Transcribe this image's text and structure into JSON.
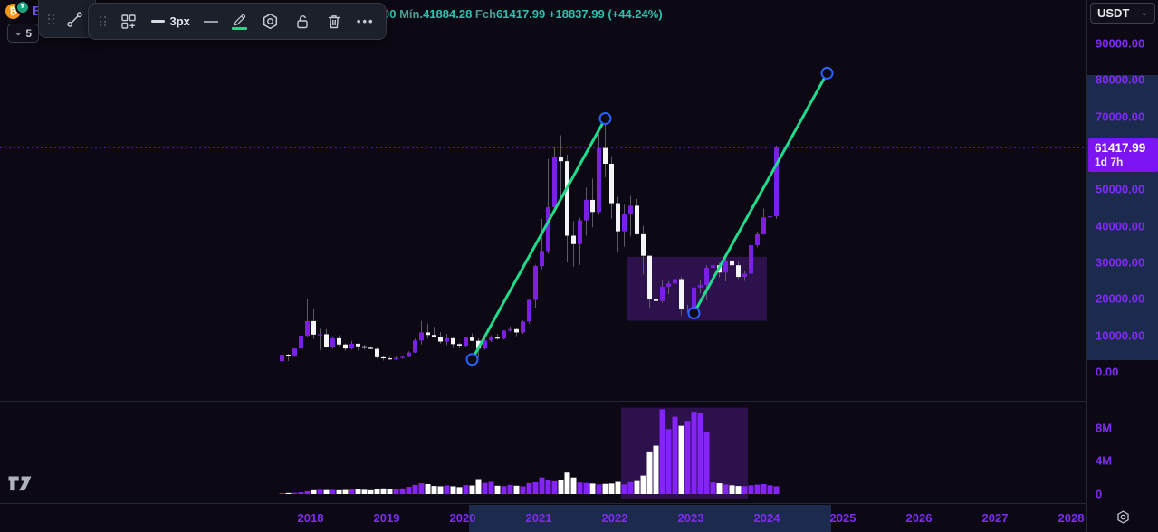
{
  "legend": {
    "symbol_fragment": "Bit",
    "collapse_count": "5",
    "ohlc_spans": [
      {
        "text": "00 ",
        "cls": "val"
      },
      {
        "text": "Mín.",
        "cls": "lab"
      },
      {
        "text": "41884.28 ",
        "cls": "val"
      },
      {
        "text": "Fch",
        "cls": "lab"
      },
      {
        "text": "61417.99 ",
        "cls": "val"
      },
      {
        "text": "+18837.99 (+44.24%)",
        "cls": "val"
      }
    ]
  },
  "toolbar": {
    "line_width_label": "3px",
    "more_label": "•••",
    "color_swatch": "#22d98a"
  },
  "currency_button": {
    "label": "USDT"
  },
  "price_axis": {
    "ticks": [
      {
        "label": "90000.00",
        "value": 90000
      },
      {
        "label": "80000.00",
        "value": 80000
      },
      {
        "label": "70000.00",
        "value": 70000
      },
      {
        "label": "50000.00",
        "value": 50000
      },
      {
        "label": "40000.00",
        "value": 40000
      },
      {
        "label": "30000.00",
        "value": 30000
      },
      {
        "label": "20000.00",
        "value": 20000
      },
      {
        "label": "10000.00",
        "value": 10000
      },
      {
        "label": "0.00",
        "value": 0
      }
    ],
    "volume_ticks": [
      {
        "label": "8M",
        "value": 8
      },
      {
        "label": "4M",
        "value": 4
      },
      {
        "label": "0",
        "value": 0
      }
    ],
    "price_label": {
      "price": "61417.99",
      "countdown": "1d 7h"
    }
  },
  "time_axis": {
    "years": [
      "2018",
      "2019",
      "2020",
      "2021",
      "2022",
      "2023",
      "2024",
      "2025",
      "2026",
      "2027",
      "2028"
    ]
  },
  "colors": {
    "background": "#0d0914",
    "candle_up": "#7b1fe4",
    "candle_down": "#f5f5f7",
    "wick": "#5c5b66",
    "volume_up": "#8524f6",
    "volume_down": "#ffffff",
    "trend_line": "#1fdc8d",
    "anchor": "#2962ff",
    "box_fill": "rgba(132,40,228,0.27)",
    "current_price_line": "#8a1bf5",
    "axis_text": "#7e2cf2",
    "axis_band": "#1c2a4e",
    "price_tag_bg": "#7d15f2",
    "separator": "#232734"
  },
  "chart_data": {
    "type": "candlestick_with_volume",
    "symbol_visible_fragment": "Bit",
    "interval": "monthly",
    "current_price": 61417.99,
    "price_unit": "kUSD",
    "volume_unit": "M",
    "ylim_price": [
      0,
      95000
    ],
    "ylim_volume": [
      0,
      11500000
    ],
    "candles_ohlcv": [
      [
        "2017-08",
        2.9,
        4.8,
        2.7,
        4.7,
        0.05
      ],
      [
        "2017-09",
        4.7,
        5.0,
        3.0,
        4.3,
        0.07
      ],
      [
        "2017-10",
        4.3,
        6.5,
        4.1,
        6.4,
        0.09
      ],
      [
        "2017-11",
        6.4,
        11.4,
        5.4,
        9.9,
        0.16
      ],
      [
        "2017-12",
        9.9,
        19.9,
        9.4,
        13.9,
        0.28
      ],
      [
        "2018-01",
        13.9,
        17.2,
        9.0,
        10.2,
        0.4
      ],
      [
        "2018-02",
        10.2,
        11.8,
        6.0,
        10.3,
        0.46
      ],
      [
        "2018-03",
        10.3,
        11.7,
        6.6,
        6.9,
        0.42
      ],
      [
        "2018-04",
        6.9,
        9.8,
        6.4,
        9.2,
        0.44
      ],
      [
        "2018-05",
        9.2,
        10.0,
        7.1,
        7.5,
        0.4
      ],
      [
        "2018-06",
        7.5,
        7.8,
        5.8,
        6.4,
        0.43
      ],
      [
        "2018-07",
        6.4,
        8.5,
        6.1,
        7.7,
        0.48
      ],
      [
        "2018-08",
        7.7,
        7.8,
        5.9,
        7.0,
        0.54
      ],
      [
        "2018-09",
        7.0,
        7.4,
        6.1,
        6.6,
        0.45
      ],
      [
        "2018-10",
        6.6,
        7.0,
        6.2,
        6.3,
        0.4
      ],
      [
        "2018-11",
        6.3,
        6.6,
        3.6,
        4.0,
        0.58
      ],
      [
        "2018-12",
        4.0,
        4.3,
        3.1,
        3.7,
        0.62
      ],
      [
        "2019-01",
        3.7,
        4.1,
        3.3,
        3.4,
        0.52
      ],
      [
        "2019-02",
        3.4,
        4.2,
        3.3,
        3.8,
        0.58
      ],
      [
        "2019-03",
        3.8,
        4.3,
        3.6,
        4.1,
        0.62
      ],
      [
        "2019-04",
        4.1,
        5.6,
        4.0,
        5.3,
        0.82
      ],
      [
        "2019-05",
        5.3,
        9.1,
        5.2,
        8.6,
        1.05
      ],
      [
        "2019-06",
        8.6,
        13.9,
        7.5,
        10.8,
        1.25
      ],
      [
        "2019-07",
        10.8,
        13.2,
        9.1,
        10.1,
        1.15
      ],
      [
        "2019-08",
        10.1,
        12.3,
        9.4,
        9.6,
        0.92
      ],
      [
        "2019-09",
        9.6,
        10.9,
        7.7,
        8.3,
        0.88
      ],
      [
        "2019-10",
        8.3,
        10.4,
        7.3,
        9.2,
        0.98
      ],
      [
        "2019-11",
        9.2,
        9.6,
        6.5,
        7.6,
        0.88
      ],
      [
        "2019-12",
        7.6,
        7.9,
        6.4,
        7.2,
        0.78
      ],
      [
        "2020-01",
        7.2,
        9.6,
        6.9,
        9.4,
        1.02
      ],
      [
        "2020-02",
        9.4,
        10.5,
        8.4,
        8.5,
        0.98
      ],
      [
        "2020-03",
        8.5,
        9.2,
        3.9,
        6.4,
        1.75
      ],
      [
        "2020-04",
        6.4,
        9.5,
        6.1,
        8.6,
        1.3
      ],
      [
        "2020-05",
        8.6,
        10.0,
        8.1,
        9.4,
        1.42
      ],
      [
        "2020-06",
        9.4,
        10.4,
        8.8,
        9.1,
        0.95
      ],
      [
        "2020-07",
        9.1,
        11.4,
        8.9,
        11.3,
        0.9
      ],
      [
        "2020-08",
        11.3,
        12.5,
        11.0,
        11.7,
        1.05
      ],
      [
        "2020-09",
        11.7,
        12.1,
        9.8,
        10.8,
        0.95
      ],
      [
        "2020-10",
        10.8,
        14.1,
        10.4,
        13.8,
        0.88
      ],
      [
        "2020-11",
        13.8,
        19.9,
        13.2,
        19.7,
        1.28
      ],
      [
        "2020-12",
        19.7,
        29.3,
        17.6,
        29.0,
        1.38
      ],
      [
        "2021-01",
        29.0,
        41.9,
        28.1,
        33.1,
        1.95
      ],
      [
        "2021-02",
        33.1,
        58.3,
        32.3,
        45.1,
        1.65
      ],
      [
        "2021-03",
        45.1,
        61.8,
        44.9,
        58.8,
        1.5
      ],
      [
        "2021-04",
        58.8,
        64.8,
        46.9,
        57.7,
        1.65
      ],
      [
        "2021-05",
        57.7,
        59.5,
        30.0,
        37.3,
        2.55
      ],
      [
        "2021-06",
        37.3,
        41.3,
        28.8,
        35.0,
        1.95
      ],
      [
        "2021-07",
        35.0,
        42.2,
        29.3,
        41.5,
        1.35
      ],
      [
        "2021-08",
        41.5,
        50.5,
        37.3,
        47.1,
        1.28
      ],
      [
        "2021-09",
        47.1,
        52.9,
        39.6,
        43.8,
        1.22
      ],
      [
        "2021-10",
        43.8,
        66.9,
        43.3,
        61.3,
        1.12
      ],
      [
        "2021-11",
        61.3,
        69.0,
        53.3,
        57.0,
        1.18
      ],
      [
        "2021-12",
        57.0,
        59.0,
        42.0,
        46.2,
        1.22
      ],
      [
        "2022-01",
        46.2,
        47.9,
        32.9,
        38.5,
        1.42
      ],
      [
        "2022-02",
        38.5,
        45.8,
        34.3,
        43.2,
        1.12
      ],
      [
        "2022-03",
        43.2,
        48.2,
        37.1,
        45.5,
        1.38
      ],
      [
        "2022-04",
        45.5,
        47.4,
        37.6,
        37.7,
        1.52
      ],
      [
        "2022-05",
        37.7,
        40.0,
        26.7,
        31.8,
        2.18
      ],
      [
        "2022-06",
        31.8,
        31.9,
        17.6,
        20.0,
        5.0
      ],
      [
        "2022-07",
        20.0,
        22.0,
        18.6,
        19.4,
        5.8
      ],
      [
        "2022-08",
        19.4,
        25.2,
        18.9,
        23.3,
        10.2
      ],
      [
        "2022-09",
        23.3,
        24.9,
        21.3,
        24.2,
        7.8
      ],
      [
        "2022-10",
        24.2,
        26.0,
        23.0,
        25.4,
        9.3
      ],
      [
        "2022-11",
        25.4,
        26.1,
        15.5,
        17.2,
        8.2
      ],
      [
        "2022-12",
        17.2,
        18.4,
        16.2,
        17.4,
        8.8
      ],
      [
        "2023-01",
        17.4,
        24.0,
        16.4,
        23.1,
        9.9
      ],
      [
        "2023-02",
        23.1,
        25.2,
        21.4,
        23.8,
        9.8
      ],
      [
        "2023-03",
        23.8,
        29.2,
        19.6,
        28.5,
        7.4
      ],
      [
        "2023-04",
        28.5,
        31.1,
        27.0,
        29.2,
        1.35
      ],
      [
        "2023-05",
        29.2,
        29.9,
        25.8,
        27.2,
        1.25
      ],
      [
        "2023-06",
        27.2,
        31.4,
        24.8,
        30.5,
        1.1
      ],
      [
        "2023-07",
        30.5,
        31.9,
        28.9,
        29.2,
        1.0
      ],
      [
        "2023-08",
        29.2,
        30.2,
        25.4,
        26.0,
        0.92
      ],
      [
        "2023-09",
        26.0,
        27.5,
        24.9,
        26.9,
        0.9
      ],
      [
        "2023-10",
        26.9,
        35.0,
        26.5,
        34.7,
        1.0
      ],
      [
        "2023-11",
        34.7,
        38.4,
        34.1,
        37.7,
        1.08
      ],
      [
        "2023-12",
        37.7,
        44.7,
        37.6,
        42.3,
        1.15
      ],
      [
        "2024-01",
        42.3,
        49.0,
        38.5,
        42.6,
        1.0
      ],
      [
        "2024-02",
        42.6,
        62.0,
        41.88,
        61.42,
        0.88
      ]
    ],
    "drawings": {
      "trend_lines": [
        {
          "from": {
            "t": "2020-02",
            "price": 3.4
          },
          "to": {
            "t": "2021-11",
            "price": 69.4
          }
        },
        {
          "from": {
            "t": "2023-01",
            "price": 16.1
          },
          "to": {
            "t": "2024-10",
            "price": 81.8
          }
        }
      ],
      "price_box": {
        "from_t": "2022-03",
        "to_t": "2023-12",
        "price_top": 31.5,
        "price_bottom": 14.0
      },
      "volume_box": {
        "from_t": "2022-02",
        "to_t": "2023-09",
        "vol_top": 10.4
      }
    }
  }
}
